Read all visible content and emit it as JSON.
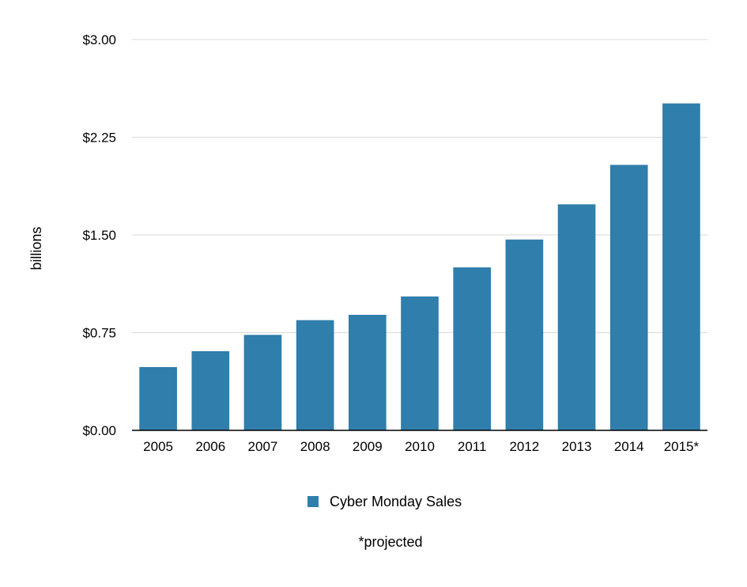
{
  "chart_data": {
    "type": "bar",
    "title": "",
    "xlabel": "",
    "ylabel": "billions",
    "ylim": [
      0,
      3
    ],
    "yticks": [
      "$0.00",
      "$0.75",
      "$1.50",
      "$2.25",
      "$3.00"
    ],
    "ytick_values": [
      0,
      0.75,
      1.5,
      2.25,
      3.0
    ],
    "categories": [
      "2005",
      "2006",
      "2007",
      "2008",
      "2009",
      "2010",
      "2011",
      "2012",
      "2013",
      "2014",
      "2015*"
    ],
    "series": [
      {
        "name": "Cyber Monday Sales",
        "color": "#2f7eab",
        "values": [
          0.486,
          0.608,
          0.733,
          0.846,
          0.887,
          1.028,
          1.251,
          1.465,
          1.735,
          2.038,
          2.51
        ]
      }
    ],
    "grid": true,
    "legend_position": "bottom-center",
    "footnote": "*projected"
  }
}
